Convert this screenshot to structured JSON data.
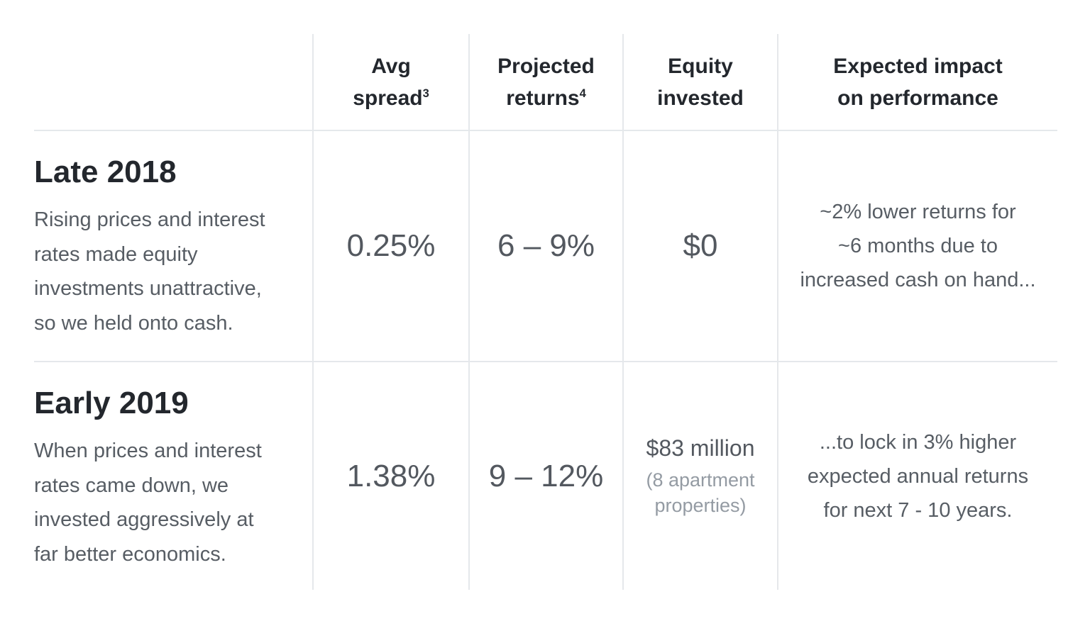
{
  "colors": {
    "background": "#ffffff",
    "grid_line": "#e5e8eb",
    "heading_text": "#23272d",
    "value_text": "#53585f",
    "body_text": "#575d64",
    "muted_text": "#949ba3"
  },
  "table": {
    "columns": [
      {
        "line1": "Avg",
        "line2": "spread",
        "sup": "3"
      },
      {
        "line1": "Projected",
        "line2": "returns",
        "sup": "4"
      },
      {
        "line1": "Equity",
        "line2": "invested"
      },
      {
        "line1": "Expected impact",
        "line2": "on performance"
      }
    ],
    "rows": [
      {
        "title": "Late 2018",
        "description_lines": [
          "Rising prices and interest",
          "rates made equity",
          "investments unattractive,",
          "so we held onto cash."
        ],
        "avg_spread": "0.25%",
        "projected_returns": "6 – 9%",
        "equity_invested": "$0",
        "impact_lines": [
          "~2% lower returns for",
          "~6 months due to",
          "increased cash on hand..."
        ]
      },
      {
        "title": "Early 2019",
        "description_lines": [
          "When prices and interest",
          "rates came down, we",
          "invested aggressively at",
          "far better economics."
        ],
        "avg_spread": "1.38%",
        "projected_returns": "9 – 12%",
        "equity_invested": "$83 million",
        "equity_note_lines": [
          "(8 apartment",
          "properties)"
        ],
        "impact_lines": [
          "...to lock in 3% higher",
          "expected annual returns",
          "for next 7 - 10 years."
        ]
      }
    ]
  },
  "chart_data": {
    "type": "table",
    "title": "",
    "columns": [
      "",
      "Avg spread (3)",
      "Projected returns (4)",
      "Equity invested",
      "Expected impact on performance"
    ],
    "rows": [
      {
        "period": "Late 2018",
        "description": "Rising prices and interest rates made equity investments unattractive, so we held onto cash.",
        "avg_spread_pct": 0.25,
        "projected_returns_pct": [
          6,
          9
        ],
        "equity_invested_usd": 0,
        "expected_impact": "~2% lower returns for ~6 months due to increased cash on hand..."
      },
      {
        "period": "Early 2019",
        "description": "When prices and interest rates came down, we invested aggressively at far better economics.",
        "avg_spread_pct": 1.38,
        "projected_returns_pct": [
          9,
          12
        ],
        "equity_invested_usd": 83000000,
        "equity_invested_label": "$83 million (8 apartment properties)",
        "expected_impact": "...to lock in 3% higher expected annual returns for next 7 - 10 years."
      }
    ]
  }
}
